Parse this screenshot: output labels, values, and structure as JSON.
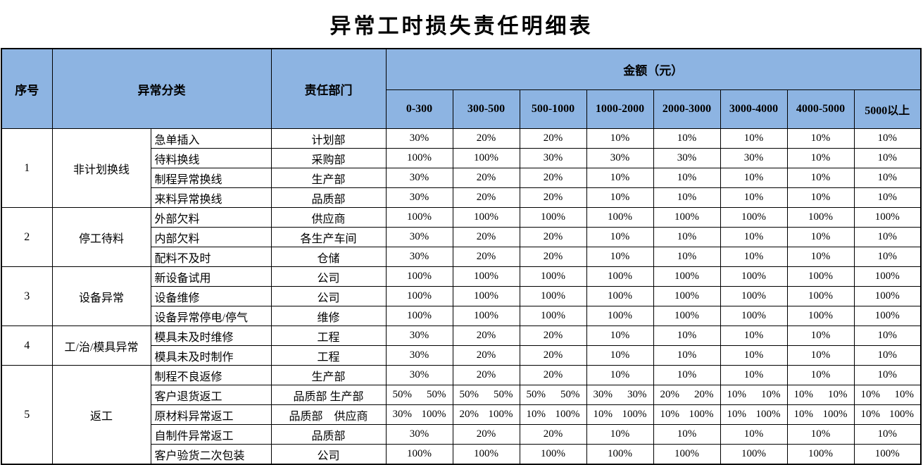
{
  "title": "异常工时损失责任明细表",
  "header_bg": "#8DB4E2",
  "table": {
    "headers": {
      "index": "序号",
      "category": "异常分类",
      "department": "责任部门",
      "amount": "金额（元）",
      "ranges": [
        "0-300",
        "300-500",
        "500-1000",
        "1000-2000",
        "2000-3000",
        "3000-4000",
        "4000-5000",
        "5000以上"
      ]
    },
    "groups": [
      {
        "index": "1",
        "category": "非计划换线",
        "rows": [
          {
            "item": "急单插入",
            "department": "计划部",
            "values": [
              "30%",
              "20%",
              "20%",
              "10%",
              "10%",
              "10%",
              "10%",
              "10%"
            ]
          },
          {
            "item": "待料换线",
            "department": "采购部",
            "values": [
              "100%",
              "100%",
              "30%",
              "30%",
              "30%",
              "30%",
              "10%",
              "10%"
            ]
          },
          {
            "item": "制程异常换线",
            "department": "生产部",
            "values": [
              "30%",
              "20%",
              "20%",
              "10%",
              "10%",
              "10%",
              "10%",
              "10%"
            ]
          },
          {
            "item": "来料异常换线",
            "department": "品质部",
            "values": [
              "30%",
              "20%",
              "20%",
              "10%",
              "10%",
              "10%",
              "10%",
              "10%"
            ]
          }
        ]
      },
      {
        "index": "2",
        "category": "停工待料",
        "rows": [
          {
            "item": "外部欠料",
            "department": "供应商",
            "values": [
              "100%",
              "100%",
              "100%",
              "100%",
              "100%",
              "100%",
              "100%",
              "100%"
            ]
          },
          {
            "item": "内部欠料",
            "department": "各生产车间",
            "values": [
              "30%",
              "20%",
              "20%",
              "10%",
              "10%",
              "10%",
              "10%",
              "10%"
            ]
          },
          {
            "item": "配料不及时",
            "department": "仓储",
            "values": [
              "30%",
              "20%",
              "20%",
              "10%",
              "10%",
              "10%",
              "10%",
              "10%"
            ]
          }
        ]
      },
      {
        "index": "3",
        "category": "设备异常",
        "rows": [
          {
            "item": "新设备试用",
            "department": "公司",
            "values": [
              "100%",
              "100%",
              "100%",
              "100%",
              "100%",
              "100%",
              "100%",
              "100%"
            ]
          },
          {
            "item": "设备维修",
            "department": "公司",
            "values": [
              "100%",
              "100%",
              "100%",
              "100%",
              "100%",
              "100%",
              "100%",
              "100%"
            ]
          },
          {
            "item": "设备异常停电/停气",
            "department": "维修",
            "values": [
              "100%",
              "100%",
              "100%",
              "100%",
              "100%",
              "100%",
              "100%",
              "100%"
            ]
          }
        ]
      },
      {
        "index": "4",
        "category": "工/治/模具异常",
        "rows": [
          {
            "item": "模具未及时维修",
            "department": "工程",
            "values": [
              "30%",
              "20%",
              "20%",
              "10%",
              "10%",
              "10%",
              "10%",
              "10%"
            ]
          },
          {
            "item": "模具未及时制作",
            "department": "工程",
            "values": [
              "30%",
              "20%",
              "20%",
              "10%",
              "10%",
              "10%",
              "10%",
              "10%"
            ]
          }
        ]
      },
      {
        "index": "5",
        "category": "返工",
        "rows": [
          {
            "item": "制程不良返修",
            "department": "生产部",
            "values": [
              "30%",
              "20%",
              "20%",
              "10%",
              "10%",
              "10%",
              "10%",
              "10%"
            ]
          },
          {
            "item": "客户退货返工",
            "department": "品质部 生产部",
            "values": [
              [
                "50%",
                "50%"
              ],
              [
                "50%",
                "50%"
              ],
              [
                "50%",
                "50%"
              ],
              [
                "30%",
                "30%"
              ],
              [
                "20%",
                "20%"
              ],
              [
                "10%",
                "10%"
              ],
              [
                "10%",
                "10%"
              ],
              [
                "10%",
                "10%"
              ]
            ]
          },
          {
            "item": "原材料异常返工",
            "department": "品质部　供应商",
            "values": [
              [
                "30%",
                "100%"
              ],
              [
                "20%",
                "100%"
              ],
              [
                "10%",
                "100%"
              ],
              [
                "10%",
                "100%"
              ],
              [
                "10%",
                "100%"
              ],
              [
                "10%",
                "100%"
              ],
              [
                "10%",
                "100%"
              ],
              [
                "10%",
                "100%"
              ]
            ]
          },
          {
            "item": "自制件异常返工",
            "department": "品质部",
            "values": [
              "30%",
              "20%",
              "20%",
              "10%",
              "10%",
              "10%",
              "10%",
              "10%"
            ]
          },
          {
            "item": "客户验货二次包装",
            "department": "公司",
            "values": [
              "100%",
              "100%",
              "100%",
              "100%",
              "100%",
              "100%",
              "100%",
              "100%"
            ]
          }
        ]
      }
    ]
  }
}
